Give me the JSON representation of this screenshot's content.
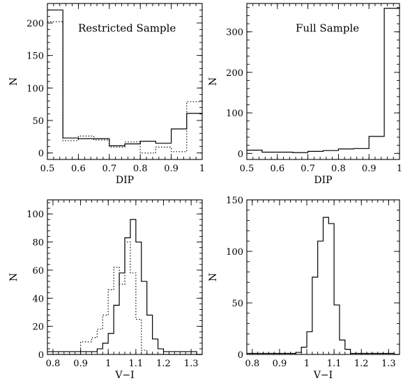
{
  "chart_data": [
    {
      "id": "restricted-dip",
      "type": "histogram",
      "title": "",
      "annotation": "Restricted Sample",
      "xlabel": "DIP",
      "ylabel": "N",
      "xlim": [
        0.5,
        1.0
      ],
      "ylim": [
        -10,
        230
      ],
      "xticks": [
        "0.5",
        "0.6",
        "0.7",
        "0.8",
        "0.9",
        "1"
      ],
      "yticks": [
        "0",
        "50",
        "100",
        "150",
        "200"
      ],
      "bin_edges": [
        0.5,
        0.55,
        0.6,
        0.65,
        0.7,
        0.75,
        0.8,
        0.85,
        0.9,
        0.95,
        1.0
      ],
      "series": [
        {
          "style": "solid",
          "values": [
            220,
            23,
            22,
            22,
            11,
            14,
            18,
            15,
            37,
            61
          ]
        },
        {
          "style": "dotted",
          "values": [
            202,
            19,
            26,
            20,
            9,
            17,
            0,
            9,
            2,
            79
          ]
        }
      ]
    },
    {
      "id": "full-dip",
      "type": "histogram",
      "title": "",
      "annotation": "Full Sample",
      "xlabel": "DIP",
      "ylabel": "N",
      "xlim": [
        0.5,
        1.0
      ],
      "ylim": [
        -15,
        370
      ],
      "xticks": [
        "0.5",
        "0.6",
        "0.7",
        "0.8",
        "0.9",
        "1"
      ],
      "yticks": [
        "0",
        "100",
        "200",
        "300"
      ],
      "bin_edges": [
        0.5,
        0.55,
        0.6,
        0.65,
        0.7,
        0.75,
        0.8,
        0.85,
        0.9,
        0.95,
        1.0
      ],
      "series": [
        {
          "style": "solid",
          "values": [
            8,
            3,
            3,
            2,
            5,
            7,
            11,
            12,
            42,
            358
          ]
        }
      ]
    },
    {
      "id": "restricted-vi",
      "type": "histogram",
      "title": "",
      "annotation": "",
      "xlabel": "V−I",
      "ylabel": "N",
      "xlim": [
        0.78,
        1.34
      ],
      "ylim": [
        0,
        110
      ],
      "xticks": [
        "0.8",
        "0.9",
        "1",
        "1.1",
        "1.2",
        "1.3"
      ],
      "yticks": [
        "0",
        "20",
        "40",
        "60",
        "80",
        "100"
      ],
      "bin_edges": [
        0.78,
        0.8,
        0.82,
        0.84,
        0.86,
        0.88,
        0.9,
        0.92,
        0.94,
        0.96,
        0.98,
        1.0,
        1.02,
        1.04,
        1.06,
        1.08,
        1.1,
        1.12,
        1.14,
        1.16,
        1.18,
        1.2,
        1.22,
        1.24,
        1.26,
        1.28,
        1.3,
        1.32,
        1.34
      ],
      "series": [
        {
          "style": "solid",
          "values": [
            2,
            2,
            2,
            2,
            2,
            2,
            2,
            2,
            2,
            4,
            8,
            15,
            35,
            58,
            83,
            96,
            80,
            52,
            28,
            11,
            4,
            2,
            2,
            2,
            2,
            2,
            2,
            0
          ]
        },
        {
          "style": "dotted",
          "values": [
            0,
            0,
            0,
            0,
            0,
            0,
            9,
            9,
            12,
            18,
            28,
            46,
            62,
            50,
            80,
            58,
            25,
            3,
            0,
            0,
            0,
            0,
            0,
            0,
            0,
            0,
            0,
            0
          ]
        }
      ]
    },
    {
      "id": "full-vi",
      "type": "histogram",
      "title": "",
      "annotation": "",
      "xlabel": "V−I",
      "ylabel": "N",
      "xlim": [
        0.78,
        1.34
      ],
      "ylim": [
        0,
        150
      ],
      "xticks": [
        "0.8",
        "0.9",
        "1",
        "1.1",
        "1.2",
        "1.3"
      ],
      "yticks": [
        "0",
        "50",
        "100",
        "150"
      ],
      "bin_edges": [
        0.78,
        0.8,
        0.82,
        0.84,
        0.86,
        0.88,
        0.9,
        0.92,
        0.94,
        0.96,
        0.98,
        1.0,
        1.02,
        1.04,
        1.06,
        1.08,
        1.1,
        1.12,
        1.14,
        1.16,
        1.18,
        1.2,
        1.22,
        1.24,
        1.26,
        1.28,
        1.3,
        1.32,
        1.34
      ],
      "series": [
        {
          "style": "solid",
          "values": [
            1,
            1,
            1,
            1,
            1,
            1,
            1,
            1,
            1,
            2,
            7,
            22,
            75,
            110,
            133,
            127,
            48,
            14,
            5,
            1,
            1,
            1,
            1,
            1,
            1,
            1,
            1,
            0
          ]
        }
      ]
    }
  ]
}
